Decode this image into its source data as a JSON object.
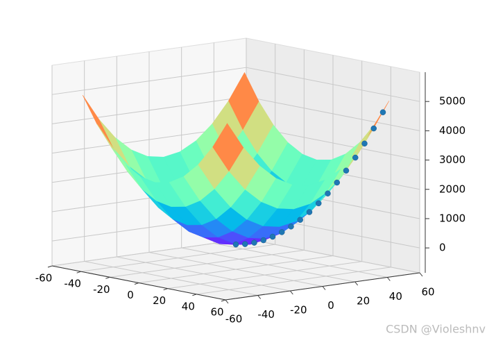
{
  "chart_data": {
    "type": "surface3d",
    "x": [
      -50,
      -40,
      -30,
      -20,
      -10,
      0,
      10,
      20,
      30,
      40,
      50
    ],
    "y": [
      -50,
      -40,
      -30,
      -20,
      -10,
      0,
      10,
      20,
      30,
      40,
      50
    ],
    "z": [
      [
        5000,
        4100,
        3400,
        2900,
        2600,
        2500,
        2600,
        2900,
        3400,
        4100,
        5000
      ],
      [
        4100,
        3200,
        2500,
        2000,
        1700,
        1600,
        1700,
        2000,
        2500,
        3200,
        4100
      ],
      [
        3400,
        2500,
        1800,
        1300,
        1000,
        900,
        1000,
        1300,
        1800,
        2500,
        3400
      ],
      [
        2900,
        2000,
        1300,
        800,
        500,
        400,
        500,
        800,
        1300,
        2000,
        2900
      ],
      [
        2600,
        1700,
        1000,
        500,
        200,
        100,
        200,
        500,
        1000,
        1700,
        2600
      ],
      [
        2500,
        1600,
        900,
        400,
        100,
        0,
        100,
        400,
        900,
        1600,
        2500
      ],
      [
        2600,
        1700,
        1000,
        500,
        200,
        100,
        200,
        500,
        1000,
        1700,
        2600
      ],
      [
        2900,
        2000,
        1300,
        800,
        500,
        400,
        500,
        800,
        1300,
        2000,
        2900
      ],
      [
        3400,
        2500,
        1800,
        1300,
        1000,
        900,
        1000,
        1300,
        1800,
        2500,
        3400
      ],
      [
        4100,
        3200,
        2500,
        2000,
        1700,
        1600,
        1700,
        2000,
        2500,
        3200,
        4100
      ],
      [
        5000,
        4100,
        3400,
        2900,
        2600,
        2500,
        2600,
        2900,
        3400,
        4100,
        5000
      ]
    ],
    "colormap": "rainbow",
    "scatter": {
      "color": "#1f77b4",
      "x": [
        0,
        3,
        6,
        9,
        12,
        15,
        18,
        21,
        24,
        27,
        30,
        33,
        36,
        39,
        42,
        45,
        48
      ],
      "y": [
        0,
        3,
        6,
        9,
        12,
        15,
        18,
        21,
        24,
        27,
        30,
        33,
        36,
        39,
        42,
        45,
        48
      ],
      "z": [
        0,
        18,
        72,
        162,
        288,
        450,
        648,
        882,
        1152,
        1458,
        1800,
        2178,
        2592,
        3042,
        3528,
        4050,
        4608
      ]
    },
    "xlim": [
      -60,
      60
    ],
    "ylim": [
      -60,
      60
    ],
    "zlim": [
      -850,
      6000
    ],
    "xticks": [
      -60,
      -40,
      -20,
      0,
      20,
      40,
      60
    ],
    "yticks": [
      -60,
      -40,
      -20,
      0,
      20,
      40,
      60
    ],
    "zticks": [
      0,
      1000,
      2000,
      3000,
      4000,
      5000
    ],
    "grid": true,
    "watermark": "CSDN @Violeshnv"
  }
}
